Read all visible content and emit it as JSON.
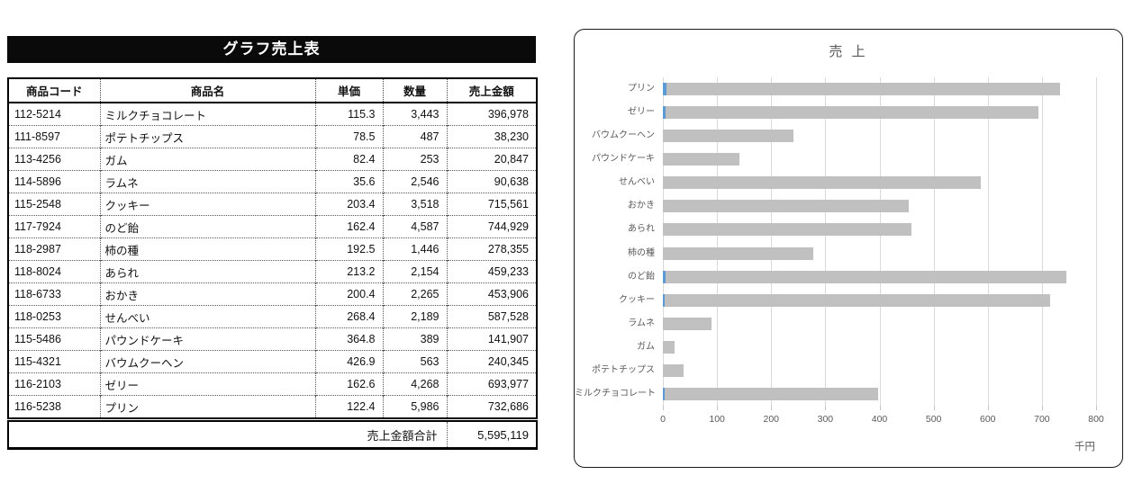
{
  "table": {
    "title": "グラフ売上表",
    "columns": [
      "商品コード",
      "商品名",
      "単価",
      "数量",
      "売上金額"
    ],
    "rows": [
      [
        "112-5214",
        "ミルクチョコレート",
        "115.3",
        "3,443",
        "396,978"
      ],
      [
        "111-8597",
        "ポテトチップス",
        "78.5",
        "487",
        "38,230"
      ],
      [
        "113-4256",
        "ガム",
        "82.4",
        "253",
        "20,847"
      ],
      [
        "114-5896",
        "ラムネ",
        "35.6",
        "2,546",
        "90,638"
      ],
      [
        "115-2548",
        "クッキー",
        "203.4",
        "3,518",
        "715,561"
      ],
      [
        "117-7924",
        "のど飴",
        "162.4",
        "4,587",
        "744,929"
      ],
      [
        "118-2987",
        "柿の種",
        "192.5",
        "1,446",
        "278,355"
      ],
      [
        "118-8024",
        "あられ",
        "213.2",
        "2,154",
        "459,233"
      ],
      [
        "118-6733",
        "おかき",
        "200.4",
        "2,265",
        "453,906"
      ],
      [
        "118-0253",
        "せんべい",
        "268.4",
        "2,189",
        "587,528"
      ],
      [
        "115-5486",
        "パウンドケーキ",
        "364.8",
        "389",
        "141,907"
      ],
      [
        "115-4321",
        "バウムクーヘン",
        "426.9",
        "563",
        "240,345"
      ],
      [
        "116-2103",
        "ゼリー",
        "162.6",
        "4,268",
        "693,977"
      ],
      [
        "116-5238",
        "プリン",
        "122.4",
        "5,986",
        "732,686"
      ]
    ],
    "total_label": "売上金額合計",
    "total_value": "5,595,119"
  },
  "chart_data": {
    "type": "bar",
    "orientation": "horizontal",
    "title": "売 上",
    "unit_label": "千円",
    "categories": [
      "プリン",
      "ゼリー",
      "バウムクーヘン",
      "パウンドケーキ",
      "せんべい",
      "おかき",
      "あられ",
      "柿の種",
      "のど飴",
      "クッキー",
      "ラムネ",
      "ガム",
      "ポテトチップス",
      "ミルクチョコレート"
    ],
    "series": [
      {
        "name": "売上金額(千円)",
        "color": "#c0c0c0",
        "values": [
          732.686,
          693.977,
          240.345,
          141.907,
          587.528,
          453.906,
          459.233,
          278.355,
          744.929,
          715.561,
          90.638,
          20.847,
          38.23,
          396.978
        ]
      },
      {
        "name": "数量(千)",
        "color": "#5b9bd5",
        "values": [
          5.986,
          4.268,
          0.563,
          0.389,
          2.189,
          2.265,
          2.154,
          1.446,
          4.587,
          3.518,
          2.546,
          0.253,
          0.487,
          3.443
        ]
      }
    ],
    "xlim": [
      0,
      800
    ],
    "xticks": [
      0,
      100,
      200,
      300,
      400,
      500,
      600,
      700,
      800
    ],
    "grid": true,
    "legend_position": "none",
    "colors": {
      "gridline": "#d9d9d9",
      "axis_text": "#595959",
      "title_text": "#595959"
    }
  }
}
